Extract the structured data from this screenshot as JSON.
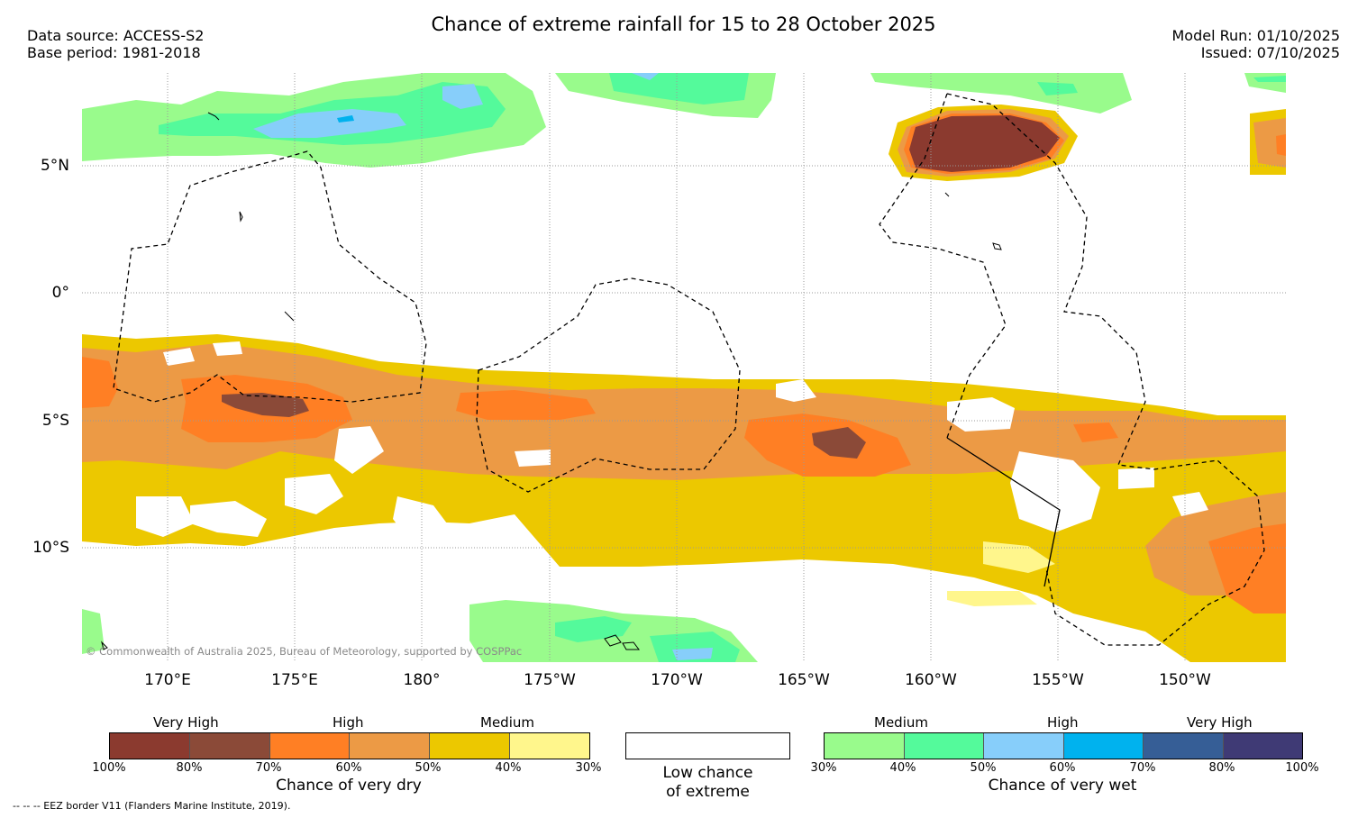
{
  "header": {
    "title": "Chance of extreme rainfall for 15 to 28 October 2025",
    "data_source": "Data source: ACCESS-S2",
    "base_period": "Base period: 1981-2018",
    "model_run": "Model Run: 01/10/2025",
    "issued": "Issued: 07/10/2025"
  },
  "map": {
    "lat_labels": [
      "5°N",
      "0°",
      "5°S",
      "10°S"
    ],
    "lon_labels": [
      "170°E",
      "175°E",
      "180°",
      "175°W",
      "170°W",
      "165°W",
      "160°W",
      "155°W",
      "150°W"
    ],
    "copyright": "© Commonwealth of Australia 2025, Bureau of Meteorology, supported by COSPPac",
    "colors": {
      "dry_100_80": "#8b3a2f",
      "dry_80_70": "#8b4a38",
      "dry_70_60": "#ff7f24",
      "dry_60_50": "#ec9a45",
      "dry_50_40": "#ecc800",
      "dry_40_30": "#fff68c",
      "wet_30_40": "#99fb8c",
      "wet_40_50": "#54fa9b",
      "wet_50_60": "#87cefa",
      "wet_60_70": "#00b2ee",
      "wet_70_80": "#365e96",
      "wet_80_100": "#3f3a75"
    }
  },
  "legend": {
    "dry": {
      "categories": [
        "Very High",
        "High",
        "Medium"
      ],
      "ticks": [
        "100%",
        "80%",
        "70%",
        "60%",
        "50%",
        "40%",
        "30%"
      ],
      "caption": "Chance of very dry"
    },
    "low": {
      "caption_line1": "Low chance",
      "caption_line2": "of extreme"
    },
    "wet": {
      "categories": [
        "Medium",
        "High",
        "Very High"
      ],
      "ticks": [
        "30%",
        "40%",
        "50%",
        "60%",
        "70%",
        "80%",
        "100%"
      ],
      "caption": "Chance of very wet"
    }
  },
  "footnote": "--  --  -- EEZ border V11 (Flanders Marine Institute, 2019)."
}
